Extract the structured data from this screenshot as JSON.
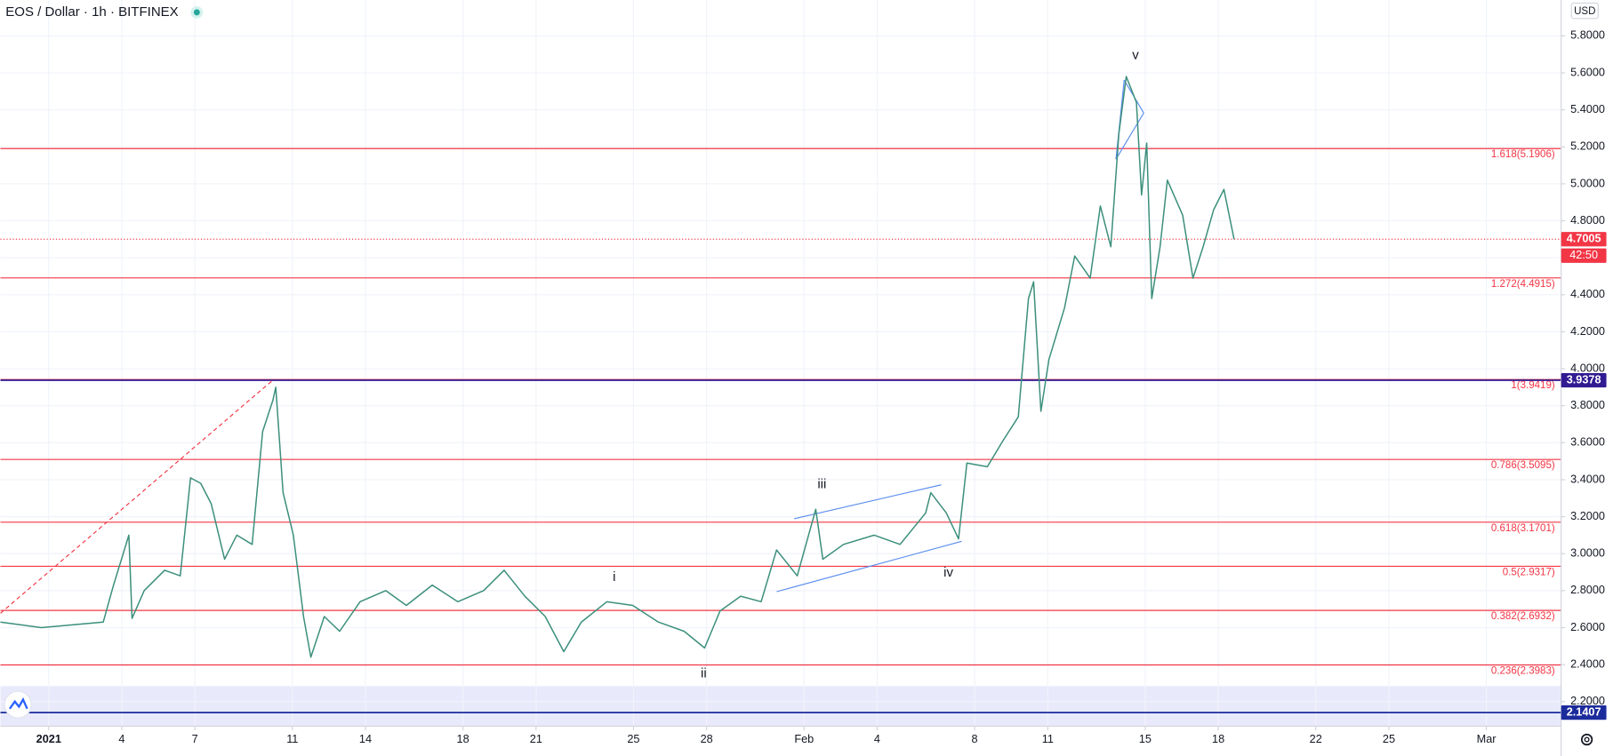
{
  "chart_data": {
    "type": "line",
    "title": "EOS / Dollar · 1h · BITFINEX",
    "currency": "USD",
    "countdown": "42:50",
    "color": "#3c8f7c",
    "grid": true,
    "x": [
      -0.98,
      0.7,
      3.24,
      3.66,
      4.29,
      4.42,
      4.92,
      5.76,
      6.4,
      6.82,
      7.24,
      7.67,
      8.22,
      8.72,
      9.35,
      9.78,
      10.2,
      10.32,
      10.62,
      11.04,
      11.46,
      11.76,
      12.31,
      12.94,
      13.78,
      14.84,
      15.68,
      16.74,
      17.79,
      18.85,
      19.69,
      20.54,
      21.38,
      22.14,
      22.86,
      23.91,
      24.97,
      26.02,
      27.08,
      27.92,
      28.55,
      29.4,
      30.24,
      30.87,
      31.72,
      32.48,
      32.77,
      33.62,
      34.88,
      35.94,
      36.99,
      37.2,
      37.84,
      38.34,
      38.68,
      39.52,
      40.16,
      40.79,
      41.21,
      41.42,
      41.72,
      42.05,
      42.69,
      43.11,
      43.74,
      44.16,
      44.59,
      44.92,
      45.22,
      45.64,
      45.85,
      46.06,
      46.27,
      46.61,
      46.91,
      47.54,
      47.96,
      48.38,
      48.81,
      49.23,
      49.65
    ],
    "values": [
      2.63,
      2.6,
      2.63,
      2.83,
      3.1,
      2.65,
      2.8,
      2.91,
      2.88,
      3.41,
      3.38,
      3.27,
      2.97,
      3.1,
      3.05,
      3.66,
      3.83,
      3.9,
      3.33,
      3.1,
      2.66,
      2.44,
      2.66,
      2.58,
      2.74,
      2.8,
      2.72,
      2.83,
      2.74,
      2.8,
      2.91,
      2.77,
      2.66,
      2.47,
      2.63,
      2.74,
      2.72,
      2.63,
      2.58,
      2.49,
      2.69,
      2.77,
      2.74,
      3.02,
      2.88,
      3.24,
      2.97,
      3.05,
      3.1,
      3.05,
      3.22,
      3.33,
      3.22,
      3.08,
      3.49,
      3.47,
      3.61,
      3.74,
      4.38,
      4.47,
      3.77,
      4.05,
      4.33,
      4.61,
      4.49,
      4.88,
      4.66,
      5.27,
      5.58,
      5.44,
      4.94,
      5.22,
      4.38,
      4.66,
      5.02,
      4.83,
      4.49,
      4.66,
      4.86,
      4.97,
      4.7
    ],
    "xlim": [
      -0.98,
      63.07
    ],
    "ylim": [
      2.067,
      5.994
    ],
    "xticks": [
      {
        "value": 1,
        "label": "2021"
      },
      4,
      7,
      11,
      14,
      18,
      21,
      25,
      28,
      {
        "value": 32,
        "label": "Feb"
      },
      {
        "value": 35,
        "label": "4"
      },
      {
        "value": 39,
        "label": "8"
      },
      {
        "value": 42,
        "label": "11"
      },
      {
        "value": 46,
        "label": "15"
      },
      {
        "value": 49,
        "label": "18"
      },
      {
        "value": 53,
        "label": "22"
      },
      {
        "value": 56,
        "label": "25"
      },
      {
        "value": 60,
        "label": "Mar"
      }
    ],
    "yticks": [
      {
        "value": 2.2,
        "label": "2.2000"
      },
      {
        "value": 2.4,
        "label": "2.4000"
      },
      {
        "value": 2.6,
        "label": "2.6000"
      },
      {
        "value": 2.8,
        "label": "2.8000"
      },
      {
        "value": 3.0,
        "label": "3.0000"
      },
      {
        "value": 3.2,
        "label": "3.2000"
      },
      {
        "value": 3.4,
        "label": "3.4000"
      },
      {
        "value": 3.6,
        "label": "3.6000"
      },
      {
        "value": 3.8,
        "label": "3.8000"
      },
      {
        "value": 4.0,
        "label": "4.0000"
      },
      {
        "value": 4.2,
        "label": "4.2000"
      },
      {
        "value": 4.4,
        "label": "4.4000"
      },
      {
        "value": 4.6,
        "label": "4.6000"
      },
      {
        "value": 4.8,
        "label": "4.8000"
      },
      {
        "value": 5.0,
        "label": "5.0000"
      },
      {
        "value": 5.2,
        "label": "5.2000"
      },
      {
        "value": 5.4,
        "label": "5.4000"
      },
      {
        "value": 5.6,
        "label": "5.6000"
      },
      {
        "value": 5.8,
        "label": "5.8000"
      }
    ],
    "levels": [
      {
        "value": 5.1906,
        "label": "1.618(5.1906)"
      },
      {
        "value": 4.4915,
        "label": "1.272(4.4915)"
      },
      {
        "value": 3.9419,
        "label": "1(3.9419)"
      },
      {
        "value": 3.5095,
        "label": "0.786(3.5095)"
      },
      {
        "value": 3.1701,
        "label": "0.618(3.1701)"
      },
      {
        "value": 2.9317,
        "label": "0.5(2.9317)"
      },
      {
        "value": 2.6932,
        "label": "0.382(2.6932)"
      },
      {
        "value": 2.3983,
        "label": "0.236(2.3983)"
      }
    ],
    "level_color": "#f23645",
    "price_lines": [
      {
        "value": 4.7005,
        "color": "#f23645",
        "dotted": true
      },
      {
        "value": 3.9378,
        "color": "#311b92",
        "dotted": false
      },
      {
        "value": 2.1407,
        "color": "#1c2b9c",
        "dotted": false
      }
    ],
    "annotations": [
      "i",
      "ii",
      "iii",
      "iv",
      "v"
    ]
  }
}
